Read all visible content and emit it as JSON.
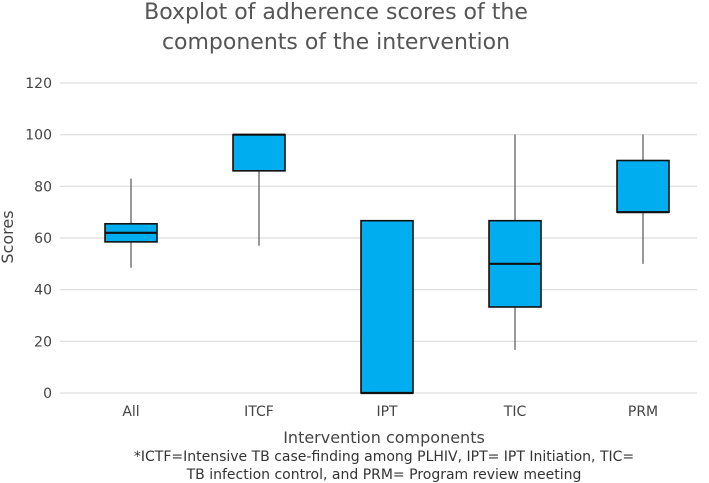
{
  "chart_data": {
    "type": "boxplot",
    "title_lines": [
      "Boxplot of adherence scores of the",
      "components of the intervention"
    ],
    "xlabel": "Intervention components",
    "ylabel": "Scores",
    "ylim": [
      0,
      120
    ],
    "yticks": [
      0,
      20,
      40,
      60,
      80,
      100,
      120
    ],
    "grid": true,
    "box_color": "#00AEEF",
    "categories": [
      "All",
      "ITCF",
      "IPT",
      "TIC",
      "PRM"
    ],
    "boxes": [
      {
        "name": "All",
        "min": 48.5,
        "q1": 58.5,
        "median": 62,
        "q3": 65.5,
        "max": 83
      },
      {
        "name": "ITCF",
        "min": 57,
        "q1": 86,
        "median": 100,
        "q3": 100,
        "max": 100
      },
      {
        "name": "IPT",
        "min": 0,
        "q1": 0,
        "median": 0,
        "q3": 66.7,
        "max": 66.7
      },
      {
        "name": "TIC",
        "min": 16.7,
        "q1": 33.3,
        "median": 50,
        "q3": 66.7,
        "max": 100
      },
      {
        "name": "PRM",
        "min": 50,
        "q1": 70,
        "median": 70,
        "q3": 90,
        "max": 100
      }
    ],
    "caption_lines": [
      "*ICTF=Intensive TB case-finding among PLHIV, IPT= IPT Initiation, TIC=",
      "TB infection control, and PRM= Program review meeting"
    ]
  }
}
